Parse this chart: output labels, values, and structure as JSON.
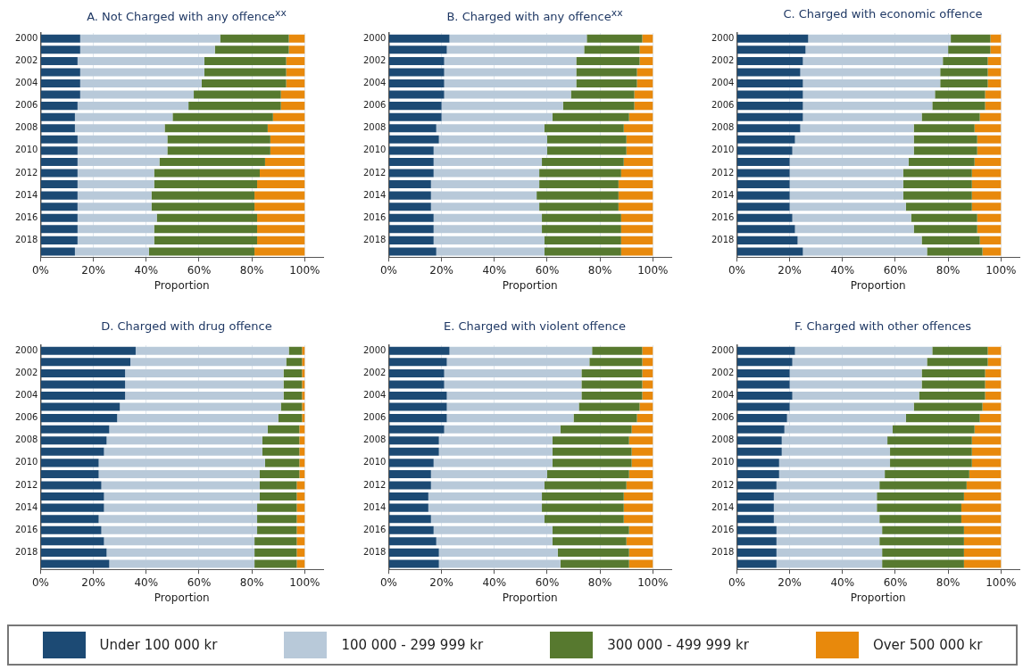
{
  "chart_data": [
    {
      "type": "bar",
      "title": "A. Not Charged with any offence$^{xx}$",
      "orientation": "horizontal",
      "stacked": true,
      "xlabel": "Proportion",
      "grid": "x",
      "legend": "bottom",
      "categories": [
        "2000",
        null,
        "2002",
        null,
        "2004",
        null,
        "2006",
        null,
        "2008",
        null,
        "2010",
        null,
        "2012",
        null,
        "2014",
        null,
        "2016",
        null,
        "2018",
        null
      ],
      "xlim": [
        0,
        107
      ],
      "xticks": [
        {
          "value": 0,
          "label": "0%"
        },
        {
          "value": 20,
          "label": "20%"
        },
        {
          "value": 40,
          "label": "40%"
        },
        {
          "value": 60,
          "label": "60%"
        },
        {
          "value": 80,
          "label": "80%"
        },
        {
          "value": 100,
          "label": "100%"
        }
      ],
      "series": [
        {
          "name": "Under 100 000 kr",
          "color": "#1c4a74",
          "values": [
            15,
            15,
            14,
            15,
            15,
            15,
            14,
            13,
            13,
            14,
            14,
            14,
            14,
            14,
            14,
            14,
            14,
            14,
            14,
            13
          ]
        },
        {
          "name": "100 000 - 299 999 kr",
          "color": "#b8c9d9",
          "values": [
            53,
            51,
            48,
            47,
            46,
            43,
            42,
            37,
            34,
            34,
            34,
            31,
            29,
            29,
            28,
            28,
            30,
            29,
            29,
            28
          ]
        },
        {
          "name": "300 000 - 499 999 kr",
          "color": "#57792f",
          "values": [
            26,
            28,
            31,
            31,
            32,
            33,
            35,
            38,
            39,
            39,
            39,
            40,
            40,
            39,
            39,
            39,
            38,
            39,
            39,
            40
          ]
        },
        {
          "name": "Over 500 000 kr",
          "color": "#e8890c",
          "values": [
            6,
            6,
            7,
            7,
            7,
            9,
            9,
            12,
            14,
            13,
            13,
            15,
            17,
            18,
            19,
            19,
            18,
            18,
            18,
            19
          ]
        }
      ]
    },
    {
      "type": "bar",
      "title": "B. Charged with any offence$^{xx}$",
      "orientation": "horizontal",
      "stacked": true,
      "xlabel": "Proportion",
      "grid": "x",
      "categories": [
        "2000",
        null,
        "2002",
        null,
        "2004",
        null,
        "2006",
        null,
        "2008",
        null,
        "2010",
        null,
        "2012",
        null,
        "2014",
        null,
        "2016",
        null,
        "2018",
        null
      ],
      "xlim": [
        0,
        107
      ],
      "xticks": [
        {
          "value": 0,
          "label": "0%"
        },
        {
          "value": 20,
          "label": "20%"
        },
        {
          "value": 40,
          "label": "40%"
        },
        {
          "value": 60,
          "label": "60%"
        },
        {
          "value": 80,
          "label": "80%"
        },
        {
          "value": 100,
          "label": "100%"
        }
      ],
      "series": [
        {
          "color": "#1c4a74",
          "values": [
            23,
            22,
            21,
            21,
            21,
            21,
            20,
            20,
            18,
            19,
            17,
            17,
            17,
            16,
            16,
            16,
            17,
            17,
            17,
            18
          ]
        },
        {
          "color": "#b8c9d9",
          "values": [
            52,
            52,
            50,
            50,
            50,
            48,
            46,
            42,
            41,
            41,
            43,
            41,
            40,
            41,
            40,
            41,
            41,
            41,
            42,
            41
          ]
        },
        {
          "color": "#57792f",
          "values": [
            21,
            21,
            24,
            23,
            23,
            24,
            27,
            29,
            30,
            30,
            30,
            31,
            31,
            30,
            31,
            30,
            30,
            30,
            29,
            29
          ]
        },
        {
          "color": "#e8890c",
          "values": [
            4,
            5,
            5,
            6,
            6,
            7,
            7,
            9,
            11,
            10,
            10,
            11,
            12,
            13,
            13,
            13,
            12,
            12,
            12,
            12
          ]
        }
      ]
    },
    {
      "type": "bar",
      "title": "C. Charged with economic offence",
      "orientation": "horizontal",
      "stacked": true,
      "xlabel": "Proportion",
      "grid": "x",
      "categories": [
        "2000",
        null,
        "2002",
        null,
        "2004",
        null,
        "2006",
        null,
        "2008",
        null,
        "2010",
        null,
        "2012",
        null,
        "2014",
        null,
        "2016",
        null,
        "2018",
        null
      ],
      "xlim": [
        0,
        107
      ],
      "xticks": [
        {
          "value": 0,
          "label": "0%"
        },
        {
          "value": 20,
          "label": "20%"
        },
        {
          "value": 40,
          "label": "40%"
        },
        {
          "value": 60,
          "label": "60%"
        },
        {
          "value": 80,
          "label": "80%"
        },
        {
          "value": 100,
          "label": "100%"
        }
      ],
      "series": [
        {
          "color": "#1c4a74",
          "values": [
            27,
            26,
            25,
            24,
            25,
            25,
            25,
            25,
            24,
            22,
            21,
            20,
            20,
            20,
            20,
            20,
            21,
            22,
            23,
            25
          ]
        },
        {
          "color": "#b8c9d9",
          "values": [
            54,
            54,
            53,
            53,
            52,
            50,
            49,
            45,
            43,
            45,
            46,
            45,
            43,
            43,
            43,
            44,
            45,
            45,
            47,
            47
          ]
        },
        {
          "color": "#57792f",
          "values": [
            15,
            16,
            17,
            18,
            18,
            19,
            20,
            22,
            23,
            24,
            24,
            25,
            26,
            26,
            26,
            25,
            25,
            24,
            22,
            21
          ]
        },
        {
          "color": "#e8890c",
          "values": [
            4,
            4,
            5,
            5,
            5,
            6,
            6,
            8,
            10,
            9,
            9,
            10,
            11,
            11,
            11,
            11,
            9,
            9,
            8,
            7
          ]
        }
      ]
    },
    {
      "type": "bar",
      "title": "D. Charged with drug offence",
      "orientation": "horizontal",
      "stacked": true,
      "xlabel": "Proportion",
      "grid": "x",
      "categories": [
        "2000",
        null,
        "2002",
        null,
        "2004",
        null,
        "2006",
        null,
        "2008",
        null,
        "2010",
        null,
        "2012",
        null,
        "2014",
        null,
        "2016",
        null,
        "2018",
        null
      ],
      "xlim": [
        0,
        107
      ],
      "xticks": [
        {
          "value": 0,
          "label": "0%"
        },
        {
          "value": 20,
          "label": "20%"
        },
        {
          "value": 40,
          "label": "40%"
        },
        {
          "value": 60,
          "label": "60%"
        },
        {
          "value": 80,
          "label": "80%"
        },
        {
          "value": 100,
          "label": "100%"
        }
      ],
      "series": [
        {
          "color": "#1c4a74",
          "values": [
            36,
            34,
            32,
            32,
            32,
            30,
            29,
            26,
            25,
            24,
            22,
            22,
            23,
            24,
            24,
            22,
            23,
            24,
            25,
            26
          ]
        },
        {
          "color": "#b8c9d9",
          "values": [
            58,
            59,
            60,
            60,
            60,
            61,
            61,
            60,
            59,
            60,
            63,
            61,
            60,
            59,
            58,
            60,
            59,
            57,
            56,
            55
          ]
        },
        {
          "color": "#57792f",
          "values": [
            5,
            6,
            7,
            7,
            7,
            8,
            9,
            12,
            14,
            14,
            13,
            15,
            14,
            14,
            15,
            15,
            15,
            16,
            16,
            16
          ]
        },
        {
          "color": "#e8890c",
          "values": [
            1,
            1,
            1,
            1,
            1,
            1,
            1,
            2,
            2,
            2,
            2,
            2,
            3,
            3,
            3,
            3,
            3,
            3,
            3,
            3
          ]
        }
      ]
    },
    {
      "type": "bar",
      "title": "E. Charged with violent offence",
      "orientation": "horizontal",
      "stacked": true,
      "xlabel": "Proportion",
      "grid": "x",
      "categories": [
        "2000",
        null,
        "2002",
        null,
        "2004",
        null,
        "2006",
        null,
        "2008",
        null,
        "2010",
        null,
        "2012",
        null,
        "2014",
        null,
        "2016",
        null,
        "2018",
        null
      ],
      "xlim": [
        0,
        107
      ],
      "xticks": [
        {
          "value": 0,
          "label": "0%"
        },
        {
          "value": 20,
          "label": "20%"
        },
        {
          "value": 40,
          "label": "40%"
        },
        {
          "value": 60,
          "label": "60%"
        },
        {
          "value": 80,
          "label": "80%"
        },
        {
          "value": 100,
          "label": "100%"
        }
      ],
      "series": [
        {
          "color": "#1c4a74",
          "values": [
            23,
            22,
            21,
            21,
            22,
            22,
            22,
            21,
            19,
            19,
            17,
            16,
            16,
            15,
            15,
            16,
            17,
            18,
            19,
            19
          ]
        },
        {
          "color": "#b8c9d9",
          "values": [
            54,
            54,
            52,
            52,
            51,
            50,
            48,
            44,
            43,
            43,
            45,
            44,
            43,
            43,
            43,
            43,
            45,
            44,
            45,
            46
          ]
        },
        {
          "color": "#57792f",
          "values": [
            19,
            20,
            23,
            23,
            23,
            23,
            24,
            27,
            29,
            30,
            30,
            31,
            31,
            31,
            31,
            30,
            29,
            28,
            27,
            26
          ]
        },
        {
          "color": "#e8890c",
          "values": [
            4,
            4,
            4,
            4,
            4,
            5,
            6,
            8,
            9,
            8,
            8,
            9,
            10,
            11,
            11,
            11,
            9,
            10,
            9,
            9
          ]
        }
      ]
    },
    {
      "type": "bar",
      "title": "F. Charged with other offences",
      "orientation": "horizontal",
      "stacked": true,
      "xlabel": "Proportion",
      "grid": "x",
      "categories": [
        "2000",
        null,
        "2002",
        null,
        "2004",
        null,
        "2006",
        null,
        "2008",
        null,
        "2010",
        null,
        "2012",
        null,
        "2014",
        null,
        "2016",
        null,
        "2018",
        null
      ],
      "xlim": [
        0,
        107
      ],
      "xticks": [
        {
          "value": 0,
          "label": "0%"
        },
        {
          "value": 20,
          "label": "20%"
        },
        {
          "value": 40,
          "label": "40%"
        },
        {
          "value": 60,
          "label": "60%"
        },
        {
          "value": 80,
          "label": "80%"
        },
        {
          "value": 100,
          "label": "100%"
        }
      ],
      "series": [
        {
          "color": "#1c4a74",
          "values": [
            22,
            21,
            20,
            20,
            21,
            20,
            19,
            18,
            17,
            17,
            16,
            16,
            15,
            14,
            14,
            14,
            15,
            15,
            15,
            15
          ]
        },
        {
          "color": "#b8c9d9",
          "values": [
            52,
            51,
            50,
            50,
            48,
            47,
            45,
            41,
            40,
            41,
            42,
            40,
            39,
            39,
            39,
            40,
            40,
            39,
            40,
            40
          ]
        },
        {
          "color": "#57792f",
          "values": [
            21,
            23,
            24,
            24,
            25,
            26,
            28,
            31,
            32,
            31,
            31,
            32,
            33,
            33,
            32,
            31,
            31,
            32,
            31,
            31
          ]
        },
        {
          "color": "#e8890c",
          "values": [
            5,
            5,
            6,
            6,
            6,
            7,
            8,
            10,
            11,
            11,
            11,
            12,
            13,
            14,
            15,
            15,
            14,
            14,
            14,
            14
          ]
        }
      ]
    }
  ]
}
